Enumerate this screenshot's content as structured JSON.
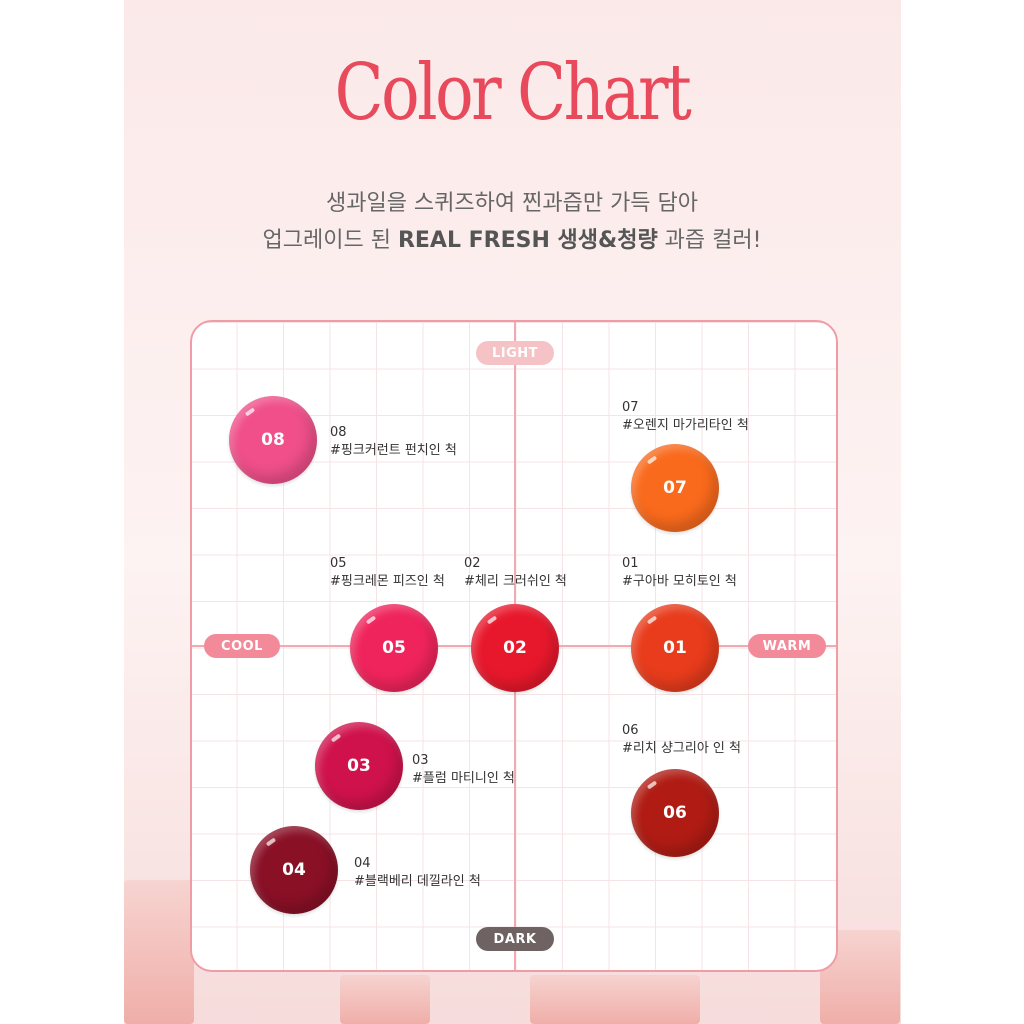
{
  "title": "Color Chart",
  "subtitle": {
    "line1": "생과일을 스퀴즈하여 찐과즙만 가득 담아",
    "line2_pre": "업그레이드 된 ",
    "line2_bold": "REAL FRESH 생생&청량",
    "line2_post": " 과즙 컬러!"
  },
  "axes": {
    "top": "LIGHT",
    "bottom": "DARK",
    "left": "COOL",
    "right": "WARM"
  },
  "colors": {
    "title": "#e84a5c",
    "axis_pill": "#f28a9a",
    "light_pill": "#f5c2c6",
    "dark_pill": "#6e6262"
  },
  "shades": [
    {
      "num": "08",
      "name": "#핑크커런트 펀치인 척",
      "color": "#f04f8a"
    },
    {
      "num": "07",
      "name": "#오렌지 마가리타인 척",
      "color": "#f96a1c"
    },
    {
      "num": "05",
      "name": "#핑크레몬 피즈인 척",
      "color": "#f0245c"
    },
    {
      "num": "02",
      "name": "#체리 크러쉬인 척",
      "color": "#e8182c"
    },
    {
      "num": "01",
      "name": "#구아바 모히토인 척",
      "color": "#e83c1c"
    },
    {
      "num": "03",
      "name": "#플럼 마티니인 척",
      "color": "#d0124c"
    },
    {
      "num": "06",
      "name": "#리치 샹그리아 인 척",
      "color": "#b01c14"
    },
    {
      "num": "04",
      "name": "#블랙베리 데낄라인 척",
      "color": "#8a1026"
    }
  ]
}
